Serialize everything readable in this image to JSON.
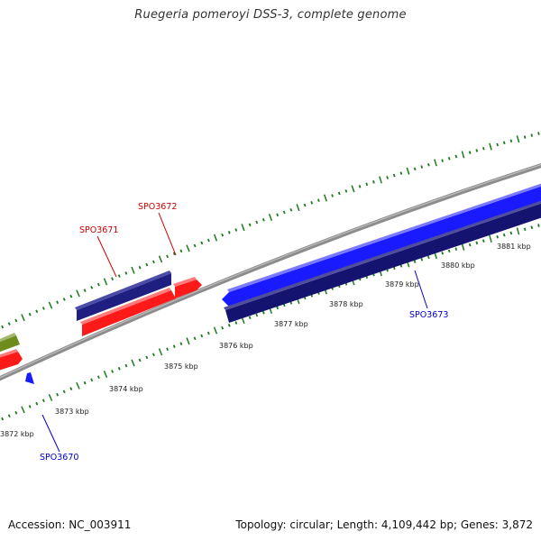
{
  "title": "Ruegeria pomeroyi DSS-3, complete genome",
  "footer": {
    "accession": "Accession: NC_003911",
    "summary": "Topology: circular; Length: 4,109,442 bp; Genes: 3,872"
  },
  "colors": {
    "backbone": "#8c8c8c",
    "forward_cds": "#1f1f82",
    "forward_orf": "#ff1a1a",
    "reverse_cds": "#1a1aff",
    "reverse_orf": "#141470",
    "other": "#6e8c1e",
    "ticks": "#1e7a1e",
    "label_forward": "#cc0000",
    "label_reverse": "#0000cc"
  },
  "scale": {
    "unit": "kbp",
    "labels": [
      "3872 kbp",
      "3873 kbp",
      "3874 kbp",
      "3875 kbp",
      "3876 kbp",
      "3877 kbp",
      "3878 kbp",
      "3879 kbp",
      "3880 kbp",
      "3881 kbp"
    ]
  },
  "genes": [
    {
      "name": "SPO3670",
      "strand": "reverse",
      "color": "#0000cc"
    },
    {
      "name": "SPO3671",
      "strand": "forward",
      "color": "#cc0000"
    },
    {
      "name": "SPO3672",
      "strand": "forward",
      "color": "#cc0000"
    },
    {
      "name": "SPO3673",
      "strand": "reverse",
      "color": "#0000cc"
    }
  ]
}
